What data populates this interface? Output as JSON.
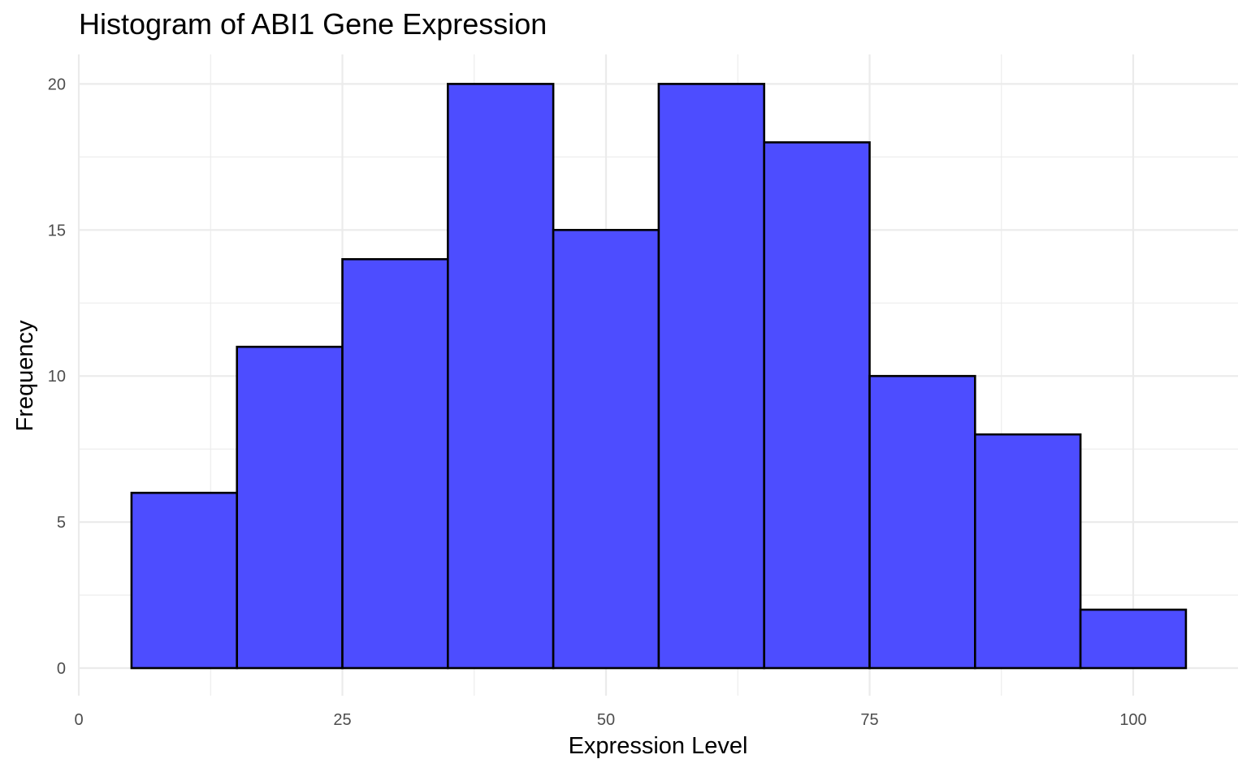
{
  "chart_data": {
    "type": "bar",
    "title": "Histogram of ABI1 Gene Expression",
    "xlabel": "Expression Level",
    "ylabel": "Frequency",
    "xlim": [
      0,
      110
    ],
    "ylim": [
      0,
      20
    ],
    "xticks": [
      0,
      25,
      50,
      75,
      100
    ],
    "yticks": [
      0,
      5,
      10,
      15,
      20
    ],
    "bin_width": 10,
    "bins": [
      {
        "start": 5,
        "end": 15,
        "count": 6
      },
      {
        "start": 15,
        "end": 25,
        "count": 11
      },
      {
        "start": 25,
        "end": 35,
        "count": 14
      },
      {
        "start": 35,
        "end": 45,
        "count": 20
      },
      {
        "start": 45,
        "end": 55,
        "count": 15
      },
      {
        "start": 55,
        "end": 65,
        "count": 20
      },
      {
        "start": 65,
        "end": 75,
        "count": 18
      },
      {
        "start": 75,
        "end": 85,
        "count": 10
      },
      {
        "start": 85,
        "end": 95,
        "count": 8
      },
      {
        "start": 95,
        "end": 105,
        "count": 2
      }
    ],
    "grid": true,
    "fill_color": "#4d4dff",
    "edge_color": "#000000"
  }
}
